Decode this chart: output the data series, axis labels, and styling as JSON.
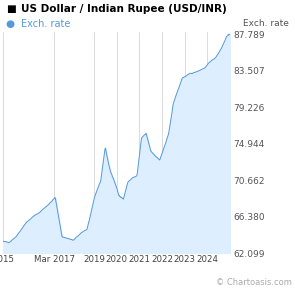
{
  "title": "US Dollar / Indian Rupee (USD/INR)",
  "legend_label": "Exch. rate",
  "ylabel": "Exch. rate",
  "line_color": "#5599dd",
  "fill_color": "#ddeeff",
  "background_color": "#ffffff",
  "grid_color": "#cccccc",
  "title_fontsize": 7.5,
  "legend_fontsize": 7.0,
  "tick_fontsize": 6.5,
  "ytick_labels": [
    "62.099",
    "66.380",
    "70.662",
    "74.944",
    "79.226",
    "83.507",
    "87.789"
  ],
  "ytick_values": [
    62.099,
    66.38,
    70.662,
    74.944,
    79.226,
    83.507,
    87.789
  ],
  "xtick_labels": [
    "2015",
    "Mar 2017",
    "2019",
    "2020",
    "2021",
    "2022",
    "2023",
    "2024"
  ],
  "watermark": "© Chartoasis.com",
  "ymin": 62.099,
  "ymax": 87.789,
  "n_points": 520
}
